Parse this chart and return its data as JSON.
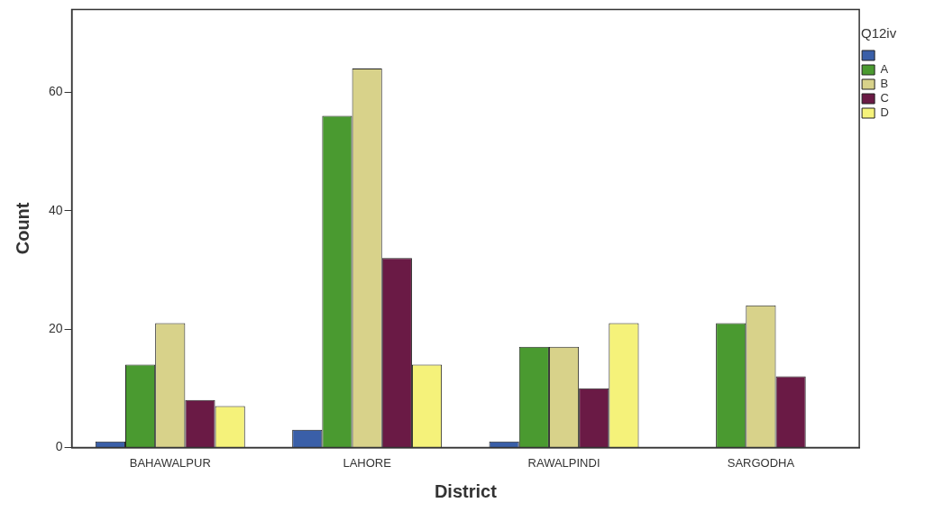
{
  "chart_data": {
    "type": "bar",
    "xlabel": "District",
    "ylabel": "Count",
    "legend_title": "Q12iv",
    "legend": "top right",
    "grid": false,
    "categories": [
      "BAHAWALPUR",
      "LAHORE",
      "RAWALPINDI",
      "SARGODHA"
    ],
    "ylim": [
      0,
      74
    ],
    "yticks": [
      0,
      20,
      40,
      60
    ],
    "series": [
      {
        "color": "#3a5fa8",
        "values": [
          1,
          3,
          1,
          0
        ]
      },
      {
        "name": "A",
        "color": "#4a9a30",
        "values": [
          14,
          56,
          17,
          21
        ]
      },
      {
        "name": "B",
        "color": "#d8d28a",
        "values": [
          21,
          64,
          17,
          24
        ]
      },
      {
        "name": "C",
        "color": "#6a1a45",
        "values": [
          8,
          32,
          10,
          12
        ]
      },
      {
        "name": "D",
        "color": "#f5f27a",
        "values": [
          7,
          14,
          21,
          0
        ]
      }
    ]
  }
}
